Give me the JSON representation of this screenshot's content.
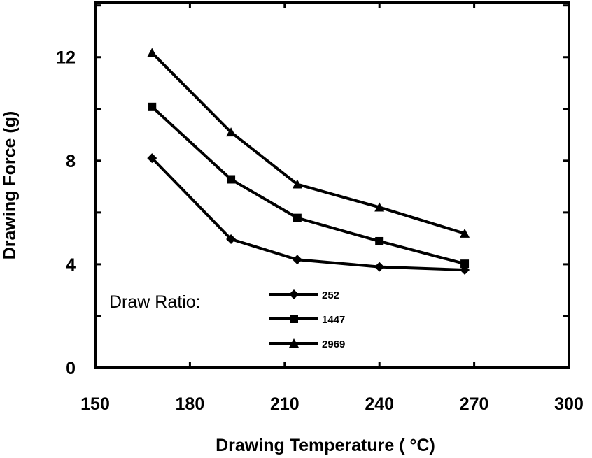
{
  "chart_data": {
    "type": "line",
    "title": "",
    "xlabel": "Drawing Temperature ( °C)",
    "ylabel": "Drawing Force (g)",
    "xlim": [
      150,
      300
    ],
    "ylim": [
      0,
      14.1
    ],
    "x_ticks": [
      150,
      180,
      210,
      240,
      270,
      300
    ],
    "y_ticks": [
      0,
      4,
      8,
      12
    ],
    "grid": false,
    "legend_title": "Draw Ratio:",
    "legend_position": "bottom-left",
    "x": [
      168,
      193,
      214,
      240,
      267
    ],
    "series": [
      {
        "name": "252",
        "marker": "diamond",
        "values": [
          8.1,
          4.97,
          4.18,
          3.9,
          3.78
        ]
      },
      {
        "name": "1447",
        "marker": "square",
        "values": [
          10.08,
          7.28,
          5.79,
          4.89,
          4.02
        ]
      },
      {
        "name": "2969",
        "marker": "triangle",
        "values": [
          12.17,
          9.1,
          7.09,
          6.2,
          5.19
        ]
      }
    ],
    "color": "#000000"
  }
}
